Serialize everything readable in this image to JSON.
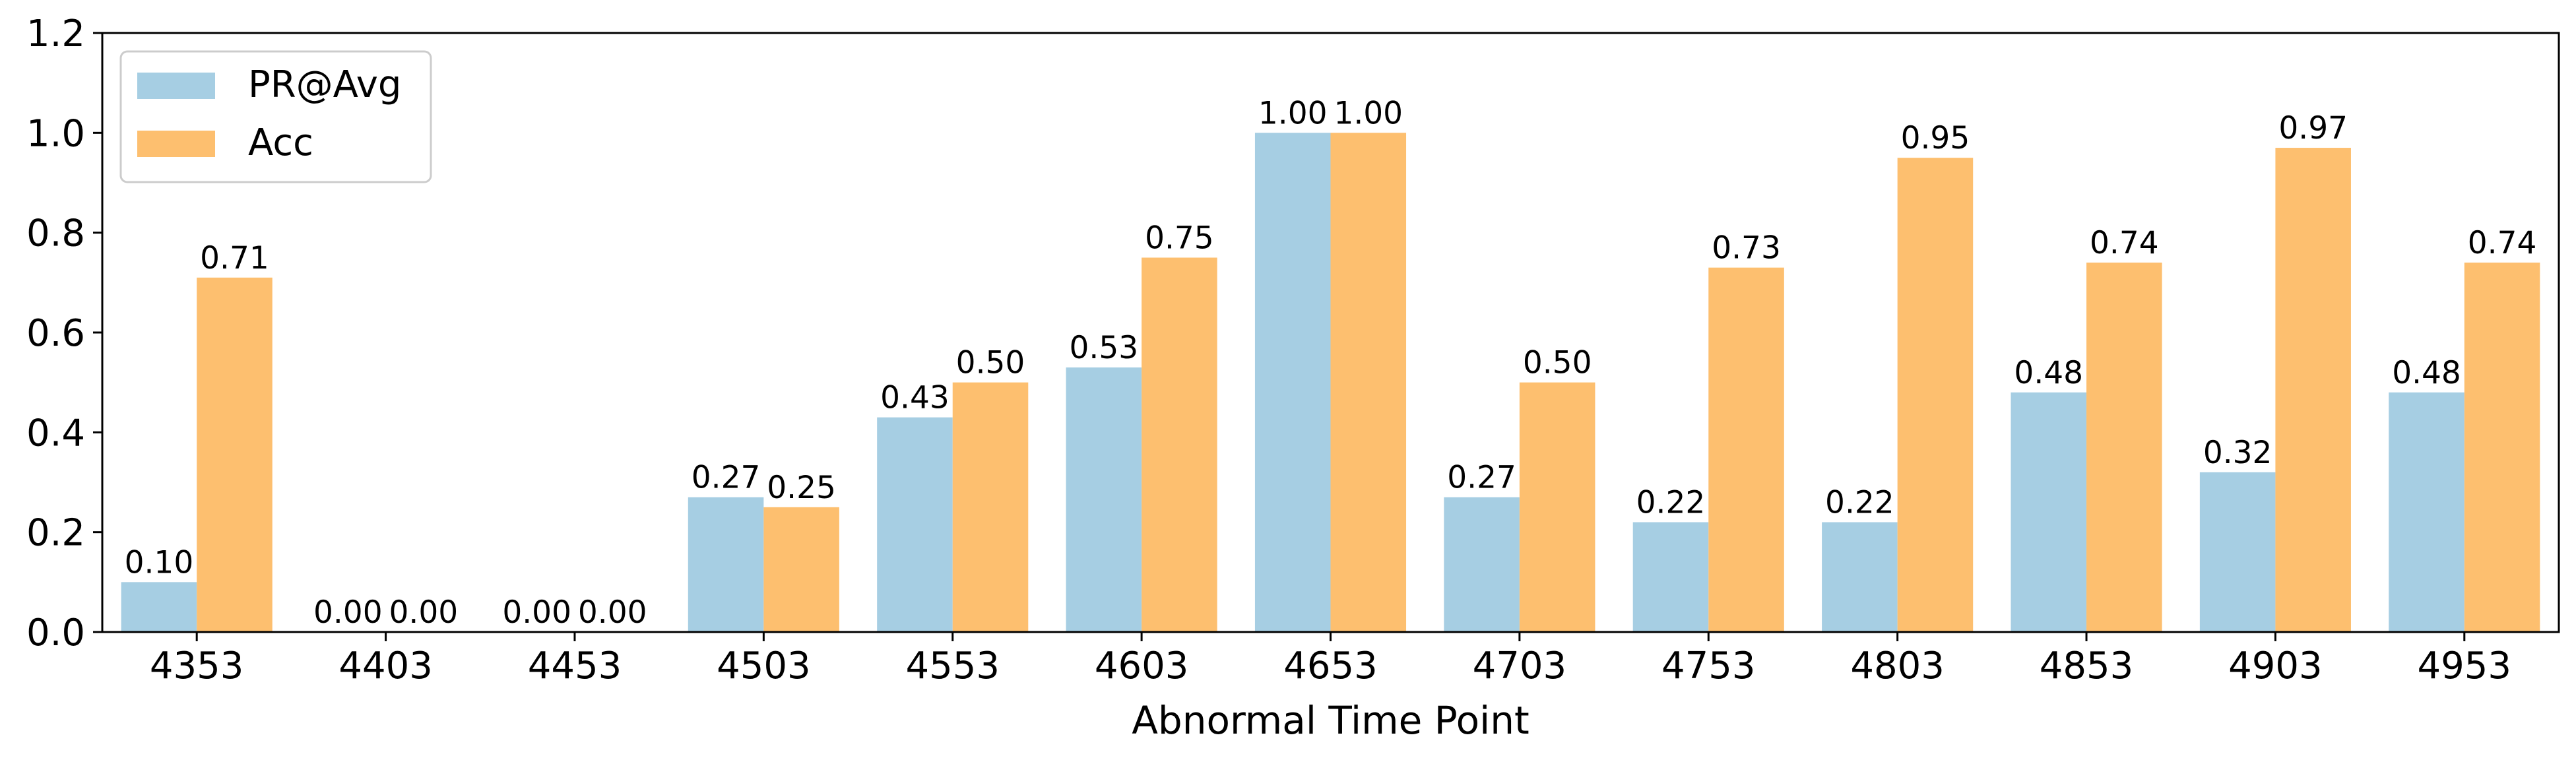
{
  "chart_data": {
    "type": "bar",
    "title": "",
    "xlabel": "Abnormal Time Point",
    "ylabel": "",
    "ylim": [
      0,
      1.2
    ],
    "yticks": [
      "0.0",
      "0.2",
      "0.4",
      "0.6",
      "0.8",
      "1.0",
      "1.2"
    ],
    "grid": false,
    "legend_position": "top-left",
    "categories": [
      "4353",
      "4403",
      "4453",
      "4503",
      "4553",
      "4603",
      "4653",
      "4703",
      "4753",
      "4803",
      "4853",
      "4903",
      "4953"
    ],
    "series": [
      {
        "name": "PR@Avg",
        "color": "#a6cee3",
        "values": [
          0.1,
          0.0,
          0.0,
          0.27,
          0.43,
          0.53,
          1.0,
          0.27,
          0.22,
          0.22,
          0.48,
          0.32,
          0.48
        ],
        "labels": [
          "0.10",
          "0.00",
          "0.00",
          "0.27",
          "0.43",
          "0.53",
          "1.00",
          "0.27",
          "0.22",
          "0.22",
          "0.48",
          "0.32",
          "0.48"
        ]
      },
      {
        "name": "Acc",
        "color": "#fdbf6f",
        "values": [
          0.71,
          0.0,
          0.0,
          0.25,
          0.5,
          0.75,
          1.0,
          0.5,
          0.73,
          0.95,
          0.74,
          0.97,
          0.74
        ],
        "labels": [
          "0.71",
          "0.00",
          "0.00",
          "0.25",
          "0.50",
          "0.75",
          "1.00",
          "0.50",
          "0.73",
          "0.95",
          "0.74",
          "0.97",
          "0.74"
        ]
      }
    ]
  }
}
